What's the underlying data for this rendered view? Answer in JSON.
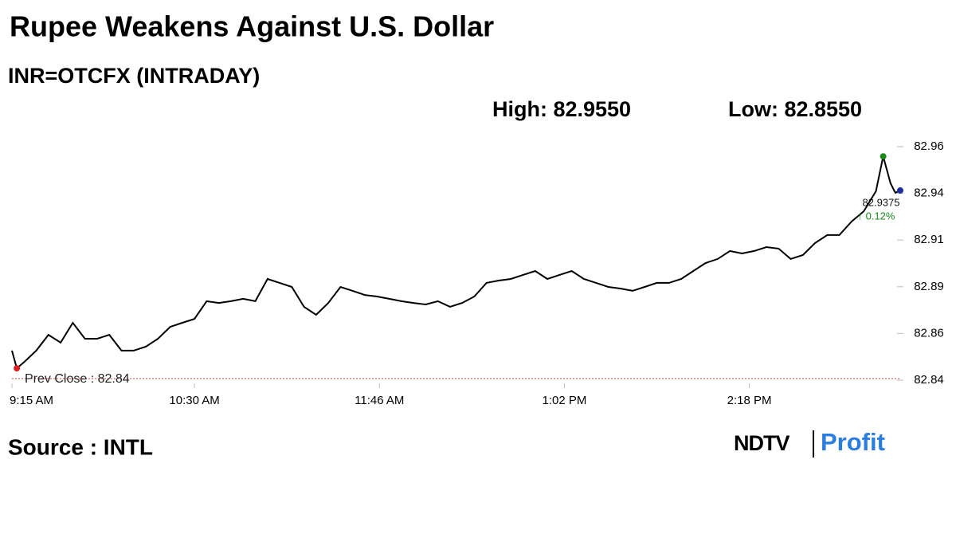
{
  "chart_data": {
    "type": "line",
    "title": "Rupee Weakens Against U.S. Dollar",
    "subtitle": "INR=OTCFX (INTRADAY)",
    "high_text": "High: 82.9550",
    "low_text": "Low: 82.8550",
    "source": "Source : INTL",
    "logo": {
      "left": "NDTV",
      "right": "Profit"
    },
    "color": "#000000",
    "high_color": "#1a8a1a",
    "low_color": "#e02020",
    "last_color": "#1f2fa0",
    "change_color": "#1a8a1a",
    "change_text": "↑ 0.12%",
    "prev_close": {
      "value": 82.84,
      "label": "Prev Close : 82.84",
      "color": "#d04040"
    },
    "x": [
      555,
      557,
      560,
      565,
      570,
      575,
      580,
      585,
      590,
      595,
      600,
      605,
      610,
      615,
      620,
      625,
      630,
      635,
      640,
      645,
      650,
      655,
      660,
      665,
      670,
      675,
      680,
      685,
      690,
      695,
      700,
      705,
      710,
      715,
      720,
      725,
      730,
      735,
      740,
      745,
      750,
      755,
      760,
      765,
      770,
      775,
      780,
      785,
      790,
      795,
      800,
      805,
      810,
      815,
      820,
      825,
      830,
      835,
      840,
      845,
      850,
      855,
      860,
      865,
      870,
      875,
      880,
      885,
      890,
      895,
      900,
      905,
      910,
      913,
      916,
      918,
      920
    ],
    "values": [
      82.8552,
      82.8461,
      82.8493,
      82.8552,
      82.8633,
      82.8593,
      82.8695,
      82.8613,
      82.8613,
      82.8633,
      82.8552,
      82.8552,
      82.8572,
      82.8613,
      82.8674,
      82.8695,
      82.8715,
      82.8806,
      82.8797,
      82.8806,
      82.8818,
      82.8806,
      82.892,
      82.89,
      82.8879,
      82.8777,
      82.8736,
      82.8797,
      82.8879,
      82.8859,
      82.8838,
      82.883,
      82.8818,
      82.8806,
      82.8797,
      82.8789,
      82.8806,
      82.8777,
      82.8797,
      82.883,
      82.89,
      82.8912,
      82.892,
      82.8941,
      82.8961,
      82.892,
      82.8941,
      82.8961,
      82.892,
      82.89,
      82.8879,
      82.8871,
      82.8859,
      82.8879,
      82.89,
      82.89,
      82.892,
      82.8961,
      82.9002,
      82.9023,
      82.9064,
      82.9051,
      82.9064,
      82.9084,
      82.9076,
      82.9023,
      82.9043,
      82.9105,
      82.9146,
      82.9146,
      82.9215,
      82.9268,
      82.9371,
      82.955,
      82.9412,
      82.9363,
      82.9375
    ],
    "xlim": [
      555,
      920
    ],
    "xticks": [
      {
        "value": 555,
        "label": "9:15 AM"
      },
      {
        "value": 630,
        "label": "10:30 AM"
      },
      {
        "value": 706,
        "label": "11:46 AM"
      },
      {
        "value": 782,
        "label": "1:02 PM"
      },
      {
        "value": 858,
        "label": "2:18 PM"
      }
    ],
    "ylim": [
      82.84,
      82.96
    ],
    "yticks": [
      82.84,
      {
        "value": 82.864,
        "label": "82.86"
      },
      {
        "value": 82.888,
        "label": "82.89"
      },
      {
        "value": 82.912,
        "label": "82.91"
      },
      {
        "value": 82.936,
        "label": "82.94"
      },
      82.96
    ]
  }
}
